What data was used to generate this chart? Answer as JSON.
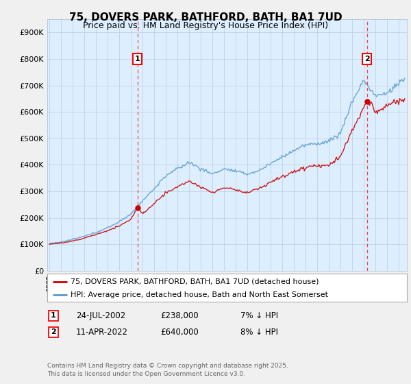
{
  "title": "75, DOVERS PARK, BATHFORD, BATH, BA1 7UD",
  "subtitle": "Price paid vs. HM Land Registry's House Price Index (HPI)",
  "legend_line1": "75, DOVERS PARK, BATHFORD, BATH, BA1 7UD (detached house)",
  "legend_line2": "HPI: Average price, detached house, Bath and North East Somerset",
  "footnote": "Contains HM Land Registry data © Crown copyright and database right 2025.\nThis data is licensed under the Open Government Licence v3.0.",
  "annotation1_date": "24-JUL-2002",
  "annotation1_price": "£238,000",
  "annotation1_hpi": "7% ↓ HPI",
  "annotation2_date": "11-APR-2022",
  "annotation2_price": "£640,000",
  "annotation2_hpi": "8% ↓ HPI",
  "sale_color": "#cc0000",
  "hpi_color": "#5599cc",
  "vline_color": "#ff4444",
  "background_color": "#f0f0f0",
  "plot_bg_color": "#ddeeff",
  "ylim": [
    0,
    950000
  ],
  "yticks": [
    0,
    100000,
    200000,
    300000,
    400000,
    500000,
    600000,
    700000,
    800000,
    900000
  ],
  "ytick_labels": [
    "£0",
    "£100K",
    "£200K",
    "£300K",
    "£400K",
    "£500K",
    "£600K",
    "£700K",
    "£800K",
    "£900K"
  ],
  "sale1_x": 2002.56,
  "sale1_y": 238000,
  "sale2_x": 2022.27,
  "sale2_y": 640000,
  "xlim_left": 1994.8,
  "xlim_right": 2025.7
}
